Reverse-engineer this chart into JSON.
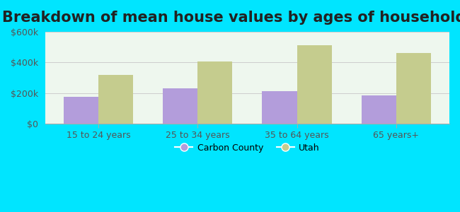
{
  "title": "Breakdown of mean house values by ages of householders",
  "categories": [
    "15 to 24 years",
    "25 to 34 years",
    "35 to 64 years",
    "65 years+"
  ],
  "carbon_county": [
    175000,
    228000,
    210000,
    185000
  ],
  "utah": [
    320000,
    405000,
    510000,
    460000
  ],
  "carbon_color": "#b39ddb",
  "utah_color": "#c5cc8e",
  "background_color": "#00e5ff",
  "plot_bg": "#eef7ee",
  "ylim": [
    0,
    600000
  ],
  "yticks": [
    0,
    200000,
    400000,
    600000
  ],
  "ytick_labels": [
    "$0",
    "$200k",
    "$400k",
    "$600k"
  ],
  "legend_carbon": "Carbon County",
  "legend_utah": "Utah",
  "title_fontsize": 15,
  "bar_width": 0.35
}
